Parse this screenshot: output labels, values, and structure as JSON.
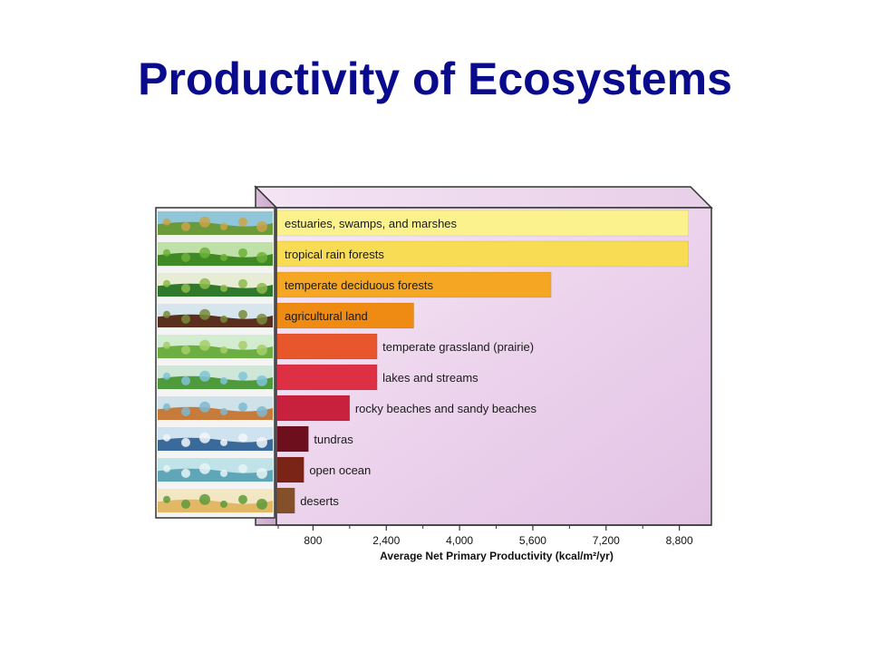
{
  "slide": {
    "title": "Productivity of Ecosystems"
  },
  "chart_data": {
    "type": "bar",
    "orientation": "horizontal",
    "title": "",
    "xlabel": "Average Net Primary Productivity (kcal/m²/yr)",
    "ylabel": "",
    "xlim": [
      0,
      9500
    ],
    "x_ticks": [
      800,
      2400,
      4000,
      5600,
      7200,
      8800
    ],
    "x_tick_labels": [
      "800",
      "2,400",
      "4,000",
      "5,600",
      "7,200",
      "8,800"
    ],
    "grid": false,
    "categories": [
      "estuaries, swamps, and marshes",
      "tropical rain forests",
      "temperate deciduous forests",
      "agricultural land",
      "temperate grassland (prairie)",
      "lakes and streams",
      "rocky beaches and sandy beaches",
      "tundras",
      "open ocean",
      "deserts"
    ],
    "values": [
      9000,
      9000,
      6000,
      3000,
      2200,
      2200,
      1600,
      700,
      600,
      400
    ],
    "bar_colors": [
      "#fbf28e",
      "#f7dc54",
      "#f5a623",
      "#ef8a12",
      "#e8562b",
      "#de3044",
      "#c8213d",
      "#6e0f1e",
      "#7a2418",
      "#84502c"
    ],
    "panel_icons": [
      "marsh-scene-icon",
      "rainforest-scene-icon",
      "deciduous-forest-scene-icon",
      "farmland-scene-icon",
      "grassland-scene-icon",
      "lake-scene-icon",
      "beach-scene-icon",
      "tundra-scene-icon",
      "ocean-scene-icon",
      "desert-scene-icon"
    ]
  }
}
